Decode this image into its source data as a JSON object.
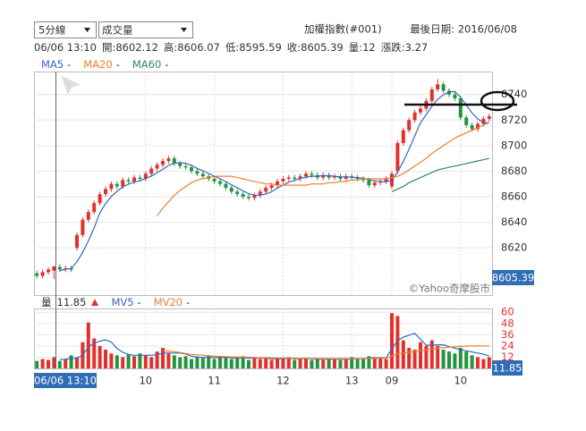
{
  "controls": {
    "interval": "5分線",
    "indicator": "成交量"
  },
  "header": {
    "index_name": "加權指數(#001)",
    "last_date": "最後日期: 2016/06/08"
  },
  "hover": {
    "time": "06/06 13:10",
    "fields": [
      {
        "label": "開:",
        "value": 8602.12
      },
      {
        "label": "高:",
        "value": 8606.07
      },
      {
        "label": "低:",
        "value": 8595.59
      },
      {
        "label": "收:",
        "value": 8605.39
      },
      {
        "label": "量:",
        "value": 12
      },
      {
        "label": "漲跌:",
        "value": 3.27
      }
    ]
  },
  "watermark": "©Yahoo奇摩股市",
  "chart_data": [
    {
      "type": "candlestick",
      "up_color": "#e2312d",
      "down_color": "#23953f",
      "open": [
        8600,
        8598,
        8601,
        8602.12,
        8605,
        8603,
        8604,
        8620,
        8630,
        8642,
        8648,
        8655,
        8662,
        8666,
        8670,
        8668,
        8673,
        8672,
        8675,
        8674,
        8678,
        8682,
        8685,
        8688,
        8690,
        8686,
        8684,
        8683,
        8680,
        8678,
        8676,
        8674,
        8672,
        8670,
        8667,
        8664,
        8662,
        8660,
        8659,
        8661,
        8664,
        8667,
        8669,
        8672,
        8674,
        8675,
        8674,
        8676,
        8678,
        8677,
        8675,
        8677,
        8675,
        8676,
        8674,
        8676,
        8675,
        8674,
        8673,
        8669,
        8671,
        8672,
        8668,
        8680,
        8702,
        8712,
        8720,
        8726,
        8729,
        8735,
        8744,
        8748,
        8743,
        8740,
        8737,
        8722,
        8716,
        8713,
        8717,
        8721
      ],
      "high": [
        8602,
        8603,
        8605,
        8606.07,
        8607,
        8606,
        8606,
        8632,
        8644,
        8650,
        8657,
        8664,
        8668,
        8672,
        8672,
        8675,
        8675,
        8677,
        8677,
        8680,
        8684,
        8687,
        8690,
        8692,
        8692,
        8688,
        8686,
        8685,
        8682,
        8680,
        8678,
        8676,
        8674,
        8672,
        8669,
        8666,
        8664,
        8662,
        8663,
        8666,
        8669,
        8671,
        8674,
        8676,
        8677,
        8677,
        8678,
        8680,
        8680,
        8679,
        8679,
        8679,
        8678,
        8678,
        8678,
        8678,
        8677,
        8676,
        8675,
        8673,
        8674,
        8676,
        8680,
        8704,
        8714,
        8722,
        8728,
        8731,
        8737,
        8746,
        8752,
        8750,
        8745,
        8742,
        8739,
        8724,
        8718,
        8719,
        8723,
        8725
      ],
      "low": [
        8596,
        8596,
        8599,
        8595.59,
        8601,
        8601,
        8601,
        8618,
        8628,
        8640,
        8646,
        8653,
        8660,
        8664,
        8666,
        8666,
        8670,
        8670,
        8672,
        8672,
        8676,
        8680,
        8683,
        8686,
        8684,
        8682,
        8681,
        8678,
        8676,
        8674,
        8672,
        8670,
        8668,
        8665,
        8662,
        8660,
        8658,
        8657,
        8657,
        8659,
        8662,
        8665,
        8667,
        8670,
        8672,
        8672,
        8672,
        8674,
        8675,
        8673,
        8673,
        8673,
        8673,
        8672,
        8672,
        8673,
        8672,
        8671,
        8667,
        8667,
        8669,
        8670,
        8666,
        8678,
        8700,
        8710,
        8718,
        8724,
        8727,
        8733,
        8742,
        8741,
        8738,
        8735,
        8720,
        8714,
        8711,
        8711,
        8715,
        8719
      ],
      "close": [
        8598,
        8601,
        8603,
        8605.39,
        8603,
        8604,
        8603,
        8630,
        8642,
        8648,
        8655,
        8662,
        8666,
        8670,
        8668,
        8673,
        8672,
        8675,
        8674,
        8678,
        8682,
        8685,
        8688,
        8690,
        8686,
        8684,
        8683,
        8680,
        8678,
        8676,
        8674,
        8672,
        8670,
        8667,
        8664,
        8662,
        8660,
        8659,
        8661,
        8664,
        8667,
        8669,
        8672,
        8674,
        8675,
        8674,
        8676,
        8678,
        8677,
        8675,
        8677,
        8675,
        8676,
        8674,
        8676,
        8675,
        8674,
        8673,
        8669,
        8671,
        8672,
        8674,
        8678,
        8702,
        8712,
        8720,
        8726,
        8729,
        8735,
        8744,
        8748,
        8743,
        8740,
        8737,
        8722,
        8716,
        8713,
        8717,
        8721,
        8723
      ],
      "series": [
        {
          "name": "MA5",
          "color": "#3467c2",
          "values": [
            null,
            null,
            null,
            null,
            8602.1,
            8603.3,
            8603.7,
            8609.1,
            8616.4,
            8625.4,
            8635.6,
            8647.4,
            8654.6,
            8660.2,
            8664.2,
            8667.8,
            8669.8,
            8671.6,
            8672.4,
            8674.4,
            8676.2,
            8678.8,
            8681.4,
            8684.6,
            8686.2,
            8686.6,
            8686.2,
            8684.6,
            8682.2,
            8680.2,
            8678.2,
            8676,
            8674,
            8671.8,
            8669.4,
            8667,
            8664.6,
            8662.4,
            8661.2,
            8661.2,
            8662.2,
            8664,
            8666.6,
            8669.2,
            8671.4,
            8672.8,
            8674.2,
            8675.4,
            8676,
            8676,
            8676.6,
            8676.4,
            8676,
            8675.4,
            8675.6,
            8675.2,
            8675,
            8674.4,
            8673.4,
            8672.4,
            8671.8,
            8671.8,
            8672.8,
            8679.4,
            8687.6,
            8697.2,
            8707.6,
            8717.8,
            8724.4,
            8730.8,
            8736.4,
            8739.8,
            8742,
            8742.4,
            8738,
            8731.6,
            8725.6,
            8721,
            8717.8,
            8718
          ]
        },
        {
          "name": "MA20",
          "color": "#f07f2b",
          "values": [
            null,
            null,
            null,
            null,
            null,
            null,
            null,
            null,
            null,
            null,
            null,
            null,
            null,
            null,
            null,
            null,
            null,
            null,
            null,
            null,
            null,
            8645,
            8651,
            8656,
            8661,
            8665,
            8668,
            8671,
            8673,
            8674,
            8675,
            8676,
            8676,
            8676,
            8676,
            8675,
            8674,
            8673,
            8672,
            8671,
            8670,
            8670,
            8669,
            8669,
            8669,
            8669,
            8669,
            8669,
            8670,
            8670,
            8670,
            8671,
            8671,
            8672,
            8672,
            8673,
            8673,
            8674,
            8674,
            8674,
            8674,
            8674,
            8675,
            8676,
            8678,
            8681,
            8684,
            8687,
            8690,
            8694,
            8697,
            8700,
            8703,
            8706,
            8708,
            8710,
            8712,
            8714,
            8716,
            8718
          ]
        },
        {
          "name": "MA60",
          "color": "#2f8a58",
          "values": [
            null,
            null,
            null,
            null,
            null,
            null,
            null,
            null,
            null,
            null,
            null,
            null,
            null,
            null,
            null,
            null,
            null,
            null,
            null,
            null,
            null,
            null,
            null,
            null,
            null,
            null,
            null,
            null,
            null,
            null,
            null,
            null,
            null,
            null,
            null,
            null,
            null,
            null,
            null,
            null,
            null,
            null,
            null,
            null,
            null,
            null,
            null,
            null,
            null,
            null,
            null,
            null,
            null,
            null,
            null,
            null,
            null,
            null,
            null,
            null,
            null,
            null,
            8664,
            8666,
            8668,
            8671,
            8673,
            8675,
            8677,
            8679,
            8681,
            8682,
            8683,
            8684,
            8685,
            8686,
            8687,
            8688,
            8689,
            8690
          ]
        }
      ],
      "legend_placeholder": "-",
      "ylim": [
        8583,
        8758
      ],
      "yticks": [
        8620,
        8640,
        8660,
        8680,
        8700,
        8720,
        8740
      ],
      "grid": true
    },
    {
      "type": "bar",
      "label": "量",
      "current_value": 11.85,
      "categories": [
        null,
        null,
        null,
        null,
        null,
        null,
        null,
        null,
        null,
        null,
        null,
        null,
        null,
        null,
        null,
        null,
        null,
        null,
        null,
        "10",
        null,
        null,
        null,
        null,
        null,
        null,
        null,
        null,
        null,
        null,
        null,
        "11",
        null,
        null,
        null,
        null,
        null,
        null,
        null,
        null,
        null,
        null,
        null,
        "12",
        null,
        null,
        null,
        null,
        null,
        null,
        null,
        null,
        null,
        null,
        null,
        "13",
        null,
        null,
        null,
        null,
        null,
        null,
        "09",
        null,
        null,
        null,
        null,
        null,
        null,
        null,
        null,
        null,
        null,
        null,
        "10",
        null,
        null,
        null,
        null,
        null
      ],
      "values": [
        8,
        10,
        9,
        12,
        8,
        10,
        14,
        12,
        28,
        49,
        32,
        24,
        20,
        16,
        14,
        12,
        15,
        13,
        16,
        14,
        12,
        18,
        22,
        16,
        14,
        12,
        13,
        10,
        12,
        11,
        14,
        10,
        12,
        11,
        10,
        12,
        13,
        9,
        11,
        10,
        12,
        9,
        10,
        11,
        12,
        9,
        10,
        11,
        9,
        10,
        9,
        11,
        10,
        9,
        10,
        12,
        11,
        10,
        13,
        11,
        12,
        10,
        59,
        56,
        30,
        22,
        20,
        28,
        24,
        30,
        24,
        20,
        18,
        16,
        22,
        18,
        14,
        12,
        10,
        11.85
      ],
      "series": [
        {
          "name": "MV5",
          "color": "#3467c2",
          "values": [
            null,
            null,
            null,
            null,
            9.4,
            9.8,
            10.6,
            10.8,
            14.4,
            22.6,
            27,
            29,
            30.6,
            28.2,
            21.2,
            17.2,
            15,
            14,
            14,
            14,
            14,
            14.6,
            16.4,
            16.4,
            16.4,
            16.4,
            15.4,
            13,
            12.2,
            11.6,
            12,
            11.4,
            11.8,
            11.6,
            11.4,
            11,
            11.6,
            11,
            11,
            11,
            11,
            10.2,
            10.4,
            10.4,
            10.8,
            10.2,
            10.4,
            10.6,
            10.2,
            9.8,
            9.8,
            10,
            9.8,
            9.8,
            9.8,
            10.2,
            10.4,
            10.4,
            11.2,
            11.4,
            11.4,
            11.2,
            21,
            29.6,
            33.4,
            35.4,
            37.4,
            31.2,
            24.8,
            24.8,
            25.2,
            25.2,
            23.2,
            21.6,
            20,
            18.8,
            17.6,
            16.4,
            15.2,
            13.2
          ]
        },
        {
          "name": "MV20",
          "color": "#f07f2b",
          "values": [
            null,
            null,
            null,
            null,
            null,
            null,
            null,
            null,
            null,
            null,
            null,
            null,
            null,
            null,
            null,
            null,
            null,
            null,
            null,
            null,
            null,
            null,
            19,
            18.5,
            18,
            17,
            16,
            15,
            14.5,
            14,
            13.5,
            13,
            12.8,
            12.5,
            12.3,
            12,
            12,
            11.8,
            11.6,
            11.5,
            11.4,
            11.3,
            11.2,
            11.1,
            11,
            10.9,
            10.8,
            10.8,
            10.7,
            10.6,
            10.6,
            10.5,
            10.5,
            10.5,
            10.5,
            10.5,
            10.6,
            10.6,
            10.7,
            10.7,
            10.8,
            10.8,
            13.2,
            15.5,
            16.5,
            17.2,
            18,
            19,
            19.8,
            20.8,
            21.6,
            22.2,
            22.6,
            23,
            23.5,
            23.8,
            24,
            24,
            24,
            24
          ]
        }
      ],
      "ylim": [
        0,
        64
      ],
      "yticks": [
        12,
        24,
        36,
        48,
        60
      ],
      "tick_color": "#e0332f",
      "grid": true
    }
  ]
}
